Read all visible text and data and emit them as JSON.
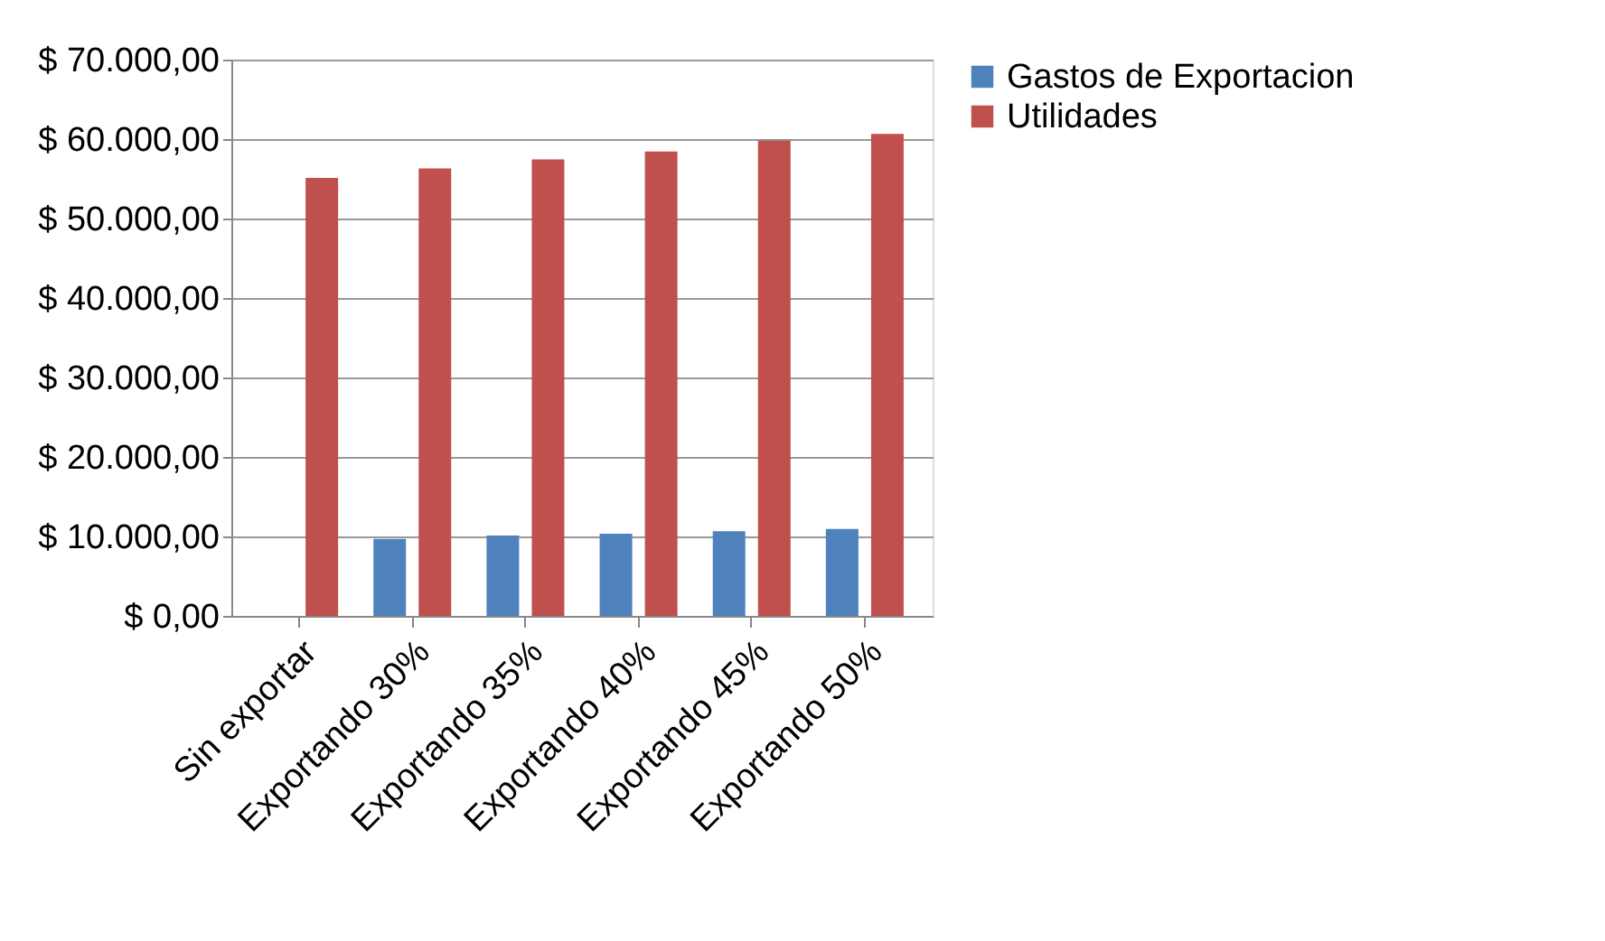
{
  "chart_data": {
    "type": "bar",
    "categories": [
      "Sin exportar",
      "Exportando 30%",
      "Exportando 35%",
      "Exportando 40%",
      "Exportando 45%",
      "Exportando 50%"
    ],
    "series": [
      {
        "name": "Gastos de Exportacion",
        "color": "#4f81bd",
        "values": [
          0,
          9700,
          10100,
          10350,
          10650,
          10950
        ]
      },
      {
        "name": "Utilidades",
        "color": "#c0504d",
        "values": [
          55100,
          56300,
          57450,
          58450,
          59800,
          60650
        ]
      }
    ],
    "ylim": [
      0,
      70000
    ],
    "yticks": [
      {
        "value": 0,
        "label": "$ 0,00"
      },
      {
        "value": 10000,
        "label": "$ 10.000,00"
      },
      {
        "value": 20000,
        "label": "$ 20.000,00"
      },
      {
        "value": 30000,
        "label": "$ 30.000,00"
      },
      {
        "value": 40000,
        "label": "$ 40.000,00"
      },
      {
        "value": 50000,
        "label": "$ 50.000,00"
      },
      {
        "value": 60000,
        "label": "$ 60.000,00"
      },
      {
        "value": 70000,
        "label": "$ 70.000,00"
      }
    ],
    "grid": "y",
    "legend": "right"
  }
}
